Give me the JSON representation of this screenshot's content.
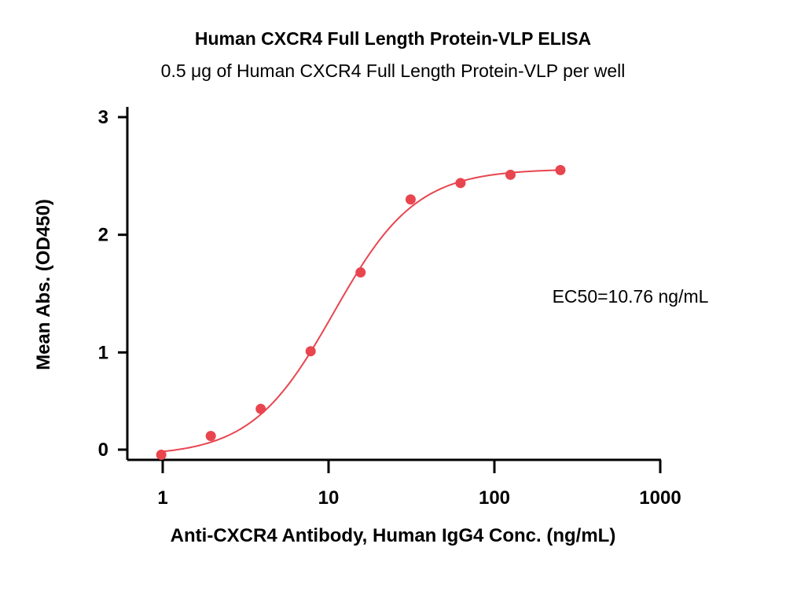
{
  "chart_data": {
    "type": "scatter",
    "title": "Human CXCR4 Full Length Protein-VLP ELISA",
    "subtitle": "0.5 μg of Human CXCR4 Full Length Protein-VLP per well",
    "xlabel": "Anti-CXCR4 Antibody, Human IgG4 Conc. (ng/mL)",
    "ylabel": "Mean Abs. (OD450)",
    "x_scale": "log",
    "xlim": [
      0.85,
      1000
    ],
    "ylim": [
      0,
      3
    ],
    "x_ticks": [
      1,
      10,
      100,
      1000
    ],
    "x_tick_labels": [
      "1",
      "10",
      "100",
      "1000"
    ],
    "y_ticks": [
      0,
      1,
      2,
      3
    ],
    "y_tick_labels": [
      "0",
      "1",
      "2",
      "3"
    ],
    "grid": false,
    "series": [
      {
        "color": "#e8454f",
        "points": [
          {
            "x": 0.98,
            "y": 0.13
          },
          {
            "x": 1.95,
            "y": 0.29
          },
          {
            "x": 3.9,
            "y": 0.52
          },
          {
            "x": 7.8,
            "y": 1.01
          },
          {
            "x": 15.6,
            "y": 1.68
          },
          {
            "x": 31.25,
            "y": 2.3
          },
          {
            "x": 62.5,
            "y": 2.44
          },
          {
            "x": 125,
            "y": 2.51
          },
          {
            "x": 250,
            "y": 2.55
          }
        ],
        "fit": {
          "model": "4PL",
          "bottom": 0.12,
          "top": 2.56,
          "ec50": 10.76,
          "hill": 1.75,
          "x_range": [
            0.98,
            250
          ]
        }
      }
    ],
    "annotations": [
      {
        "text": "EC50=10.76 ng/mL"
      }
    ]
  }
}
